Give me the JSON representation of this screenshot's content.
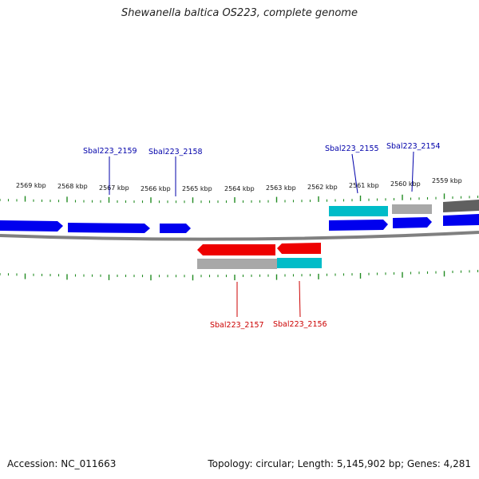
{
  "title": "Shewanella baltica OS223, complete genome",
  "footer": {
    "accession": "Accession: NC_011663",
    "summary": "Topology: circular; Length: 5,145,902 bp; Genes: 4,281"
  },
  "colors": {
    "forward": "#0000ee",
    "reverse": "#ee0000",
    "cyan": "#00bcc8",
    "gray": "#a8a8a8",
    "dark_gray": "#606060",
    "tick": "#228b22",
    "forward_label": "#0000aa",
    "reverse_label": "#cc0000"
  },
  "scale_labels": [
    "2569 kbp",
    "2568 kbp",
    "2567 kbp",
    "2566 kbp",
    "2565 kbp",
    "2564 kbp",
    "2563 kbp",
    "2562 kbp",
    "2561 kbp",
    "2560 kbp",
    "2559 kbp"
  ],
  "forward_genes": [
    {
      "label": "Sbal223_2159"
    },
    {
      "label": "Sbal223_2158"
    },
    {
      "label": "Sbal223_2155"
    },
    {
      "label": "Sbal223_2154"
    }
  ],
  "reverse_genes": [
    {
      "label": "Sbal223_2157"
    },
    {
      "label": "Sbal223_2156"
    }
  ]
}
